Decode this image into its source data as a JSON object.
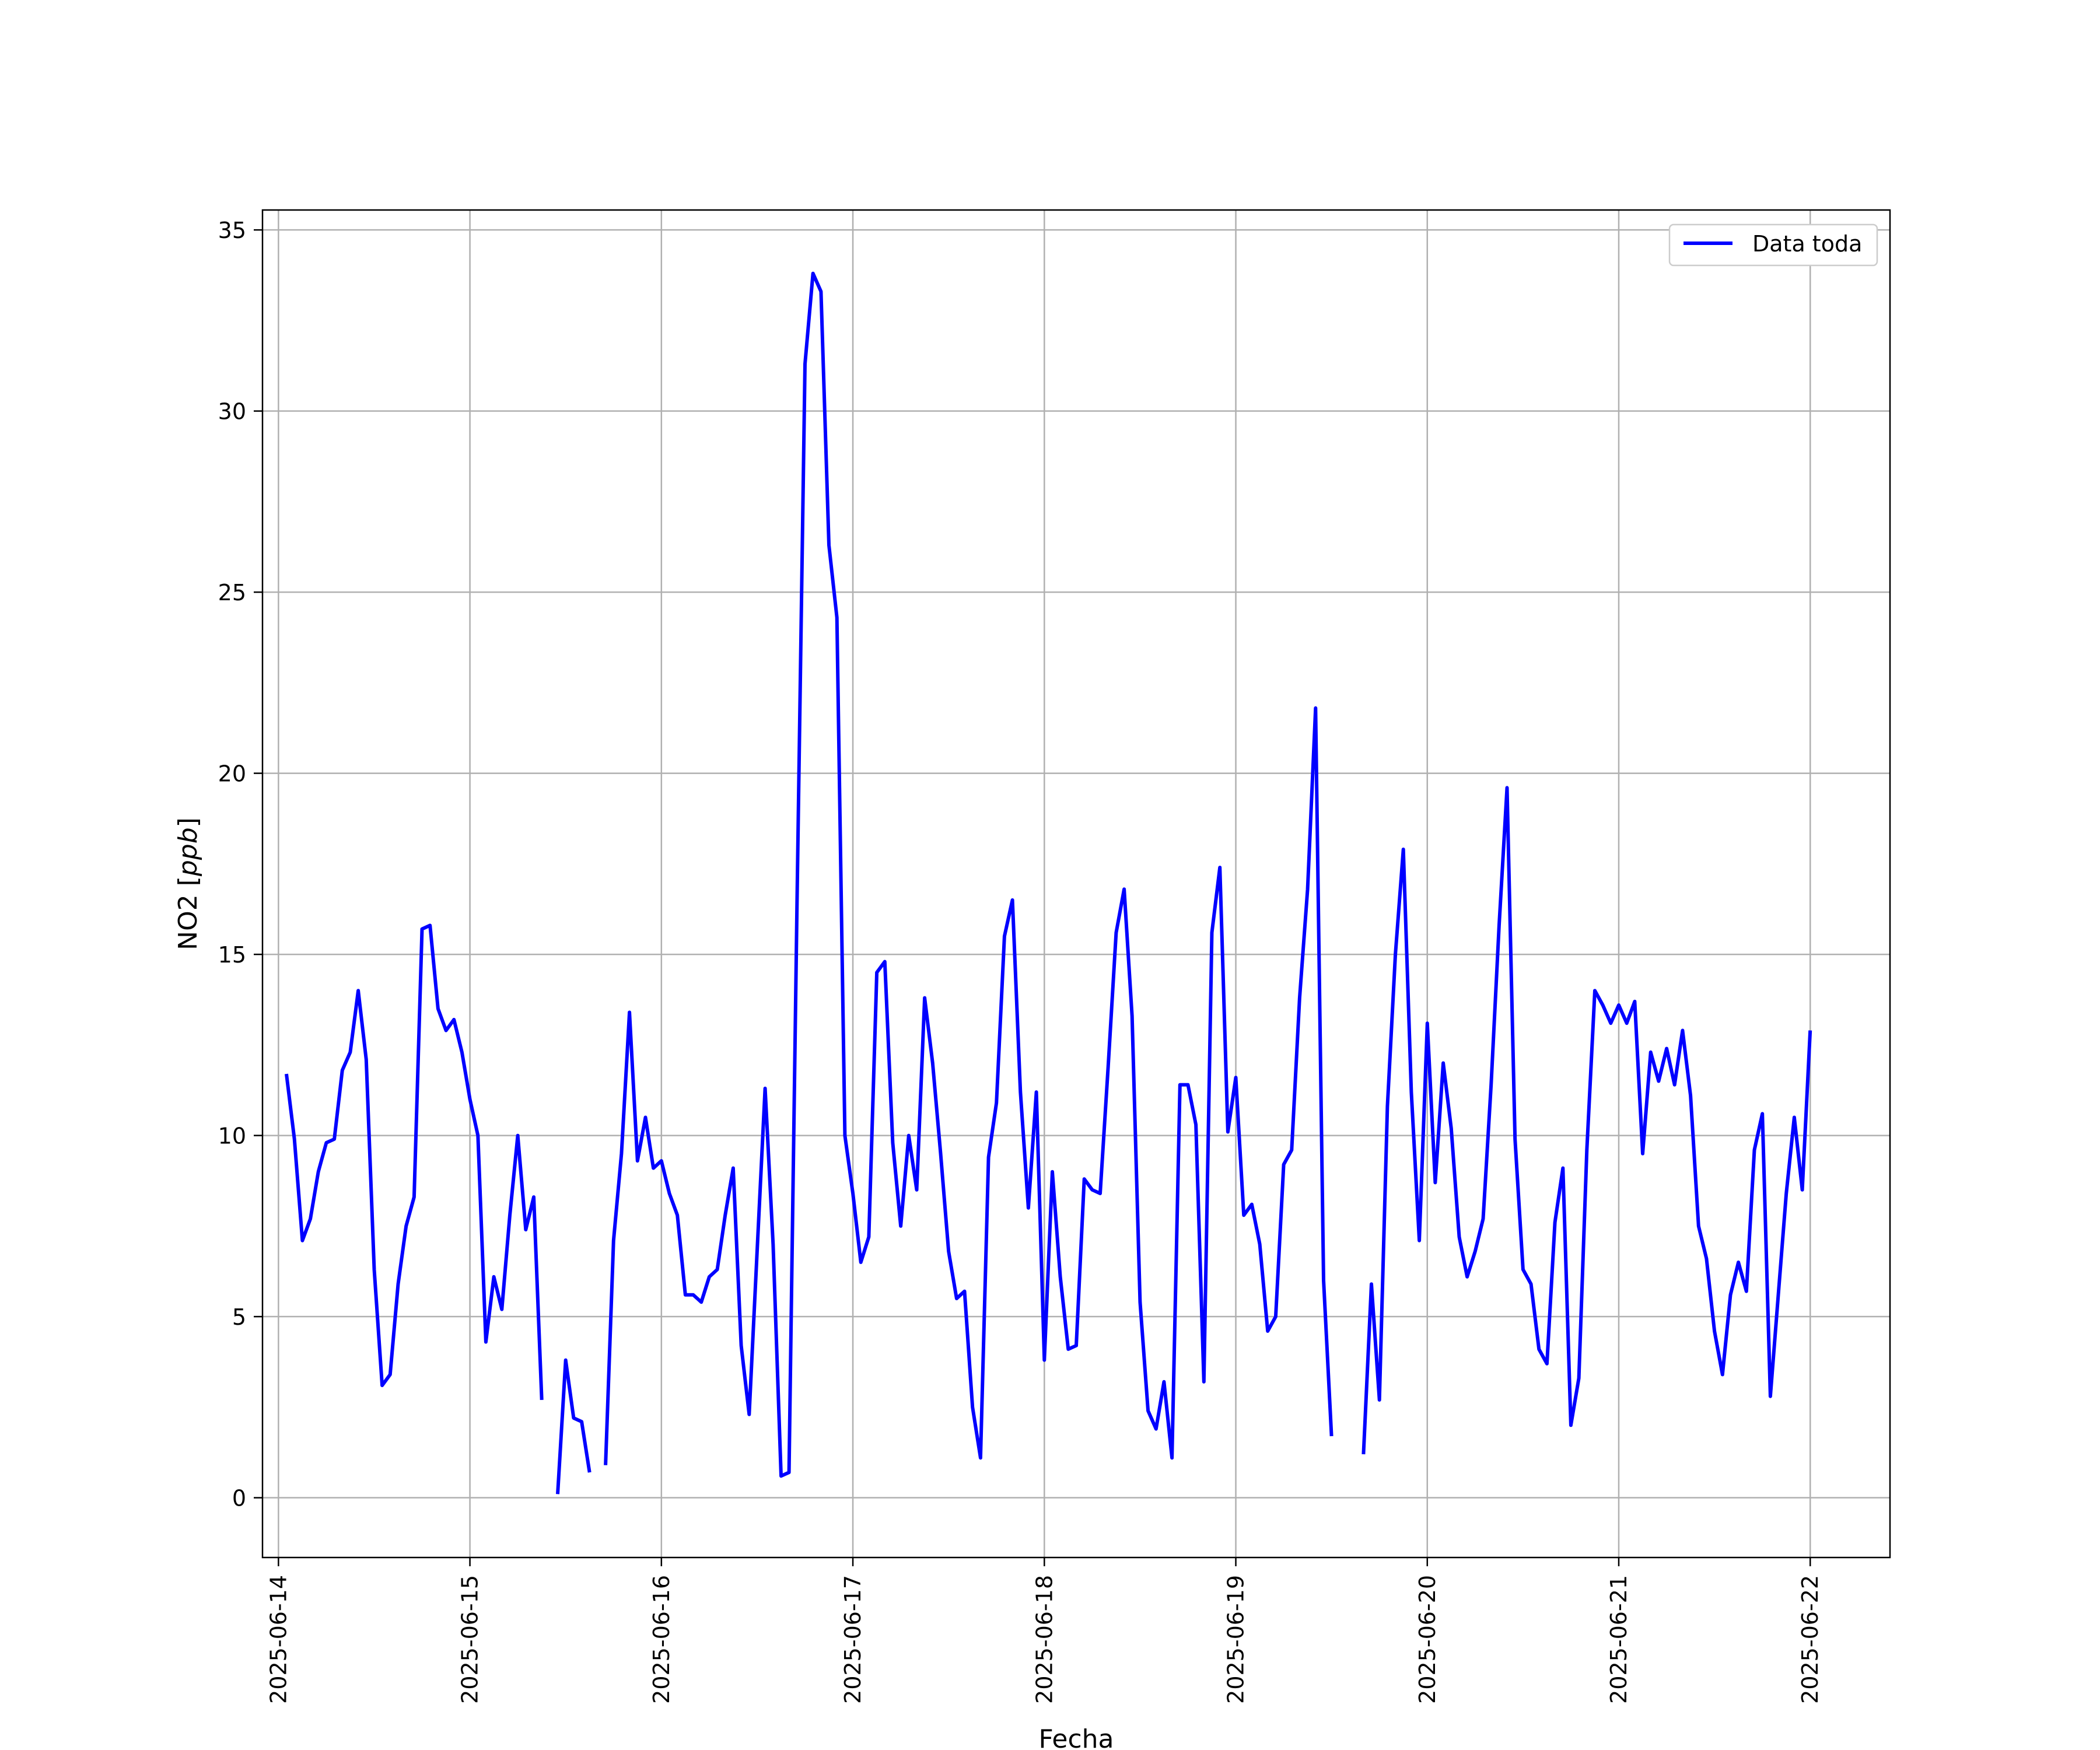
{
  "chart_data": {
    "type": "line",
    "title": "",
    "xlabel": "Fecha",
    "ylabel_plain": "NO2 [",
    "ylabel_italic": "ppb",
    "ylabel_close": "]",
    "xlim": [
      "2025-06-13 22:00",
      "2025-06-22 10:00"
    ],
    "ylim": [
      -1.65,
      35.55
    ],
    "x_ticks": [
      "2025-06-14",
      "2025-06-15",
      "2025-06-16",
      "2025-06-17",
      "2025-06-18",
      "2025-06-19",
      "2025-06-20",
      "2025-06-21",
      "2025-06-22"
    ],
    "y_ticks": [
      0,
      5,
      10,
      15,
      20,
      25,
      30,
      35
    ],
    "y_tick_labels": [
      "0",
      "5",
      "10",
      "15",
      "20",
      "25",
      "30",
      "35"
    ],
    "grid": true,
    "legend": {
      "placement": "top-right",
      "entries": [
        "Data toda"
      ]
    },
    "colors": {
      "line": "#0000ff",
      "grid": "#b0b0b0",
      "axes": "#000000"
    },
    "start": "2025-06-14 01:00",
    "step_hours": 1,
    "series": [
      {
        "name": "Data toda",
        "values": [
          11.7,
          9.9,
          7.1,
          7.7,
          9.0,
          9.8,
          9.9,
          11.8,
          12.3,
          14.0,
          12.1,
          6.3,
          3.1,
          3.4,
          5.9,
          7.5,
          8.3,
          15.7,
          15.8,
          13.5,
          12.9,
          13.2,
          12.3,
          11.0,
          10.0,
          4.3,
          6.1,
          5.2,
          7.8,
          10.0,
          7.4,
          8.3,
          2.7,
          null,
          0.1,
          3.8,
          2.2,
          2.1,
          0.7,
          null,
          0.9,
          7.1,
          9.5,
          13.4,
          9.3,
          10.5,
          9.1,
          9.3,
          8.4,
          7.8,
          5.6,
          5.6,
          5.4,
          6.1,
          6.3,
          7.8,
          9.1,
          4.2,
          2.3,
          6.8,
          11.3,
          7.0,
          0.6,
          0.7,
          16.4,
          31.3,
          33.8,
          33.3,
          26.3,
          24.3,
          10.0,
          8.4,
          6.5,
          7.2,
          14.5,
          14.8,
          9.8,
          7.5,
          10.0,
          8.5,
          13.8,
          12.0,
          9.5,
          6.8,
          5.5,
          5.7,
          2.5,
          1.1,
          9.4,
          10.9,
          15.5,
          16.5,
          11.2,
          8.0,
          11.2,
          3.8,
          9.0,
          6.1,
          4.1,
          4.2,
          8.8,
          8.5,
          8.4,
          11.9,
          15.6,
          16.8,
          13.3,
          5.4,
          2.4,
          1.9,
          3.2,
          1.1,
          11.4,
          11.4,
          10.3,
          3.2,
          15.6,
          17.4,
          10.1,
          11.6,
          7.8,
          8.1,
          7.0,
          4.6,
          5.0,
          9.2,
          9.6,
          13.8,
          16.8,
          21.8,
          6.0,
          1.7,
          null,
          null,
          null,
          1.2,
          5.9,
          2.7,
          10.8,
          15.0,
          17.9,
          11.2,
          7.1,
          13.1,
          8.7,
          12.0,
          10.2,
          7.2,
          6.1,
          6.8,
          7.7,
          11.4,
          15.8,
          19.6,
          9.9,
          6.3,
          5.9,
          4.1,
          3.7,
          7.6,
          9.1,
          2.0,
          3.3,
          9.6,
          14.0,
          13.6,
          13.1,
          13.6,
          13.1,
          13.7,
          9.5,
          12.3,
          11.5,
          12.4,
          11.4,
          12.9,
          11.1,
          7.5,
          6.6,
          4.6,
          3.4,
          5.6,
          6.5,
          5.7,
          9.6,
          10.6,
          2.8,
          5.6,
          8.4,
          10.5,
          8.5,
          12.9
        ]
      }
    ]
  }
}
